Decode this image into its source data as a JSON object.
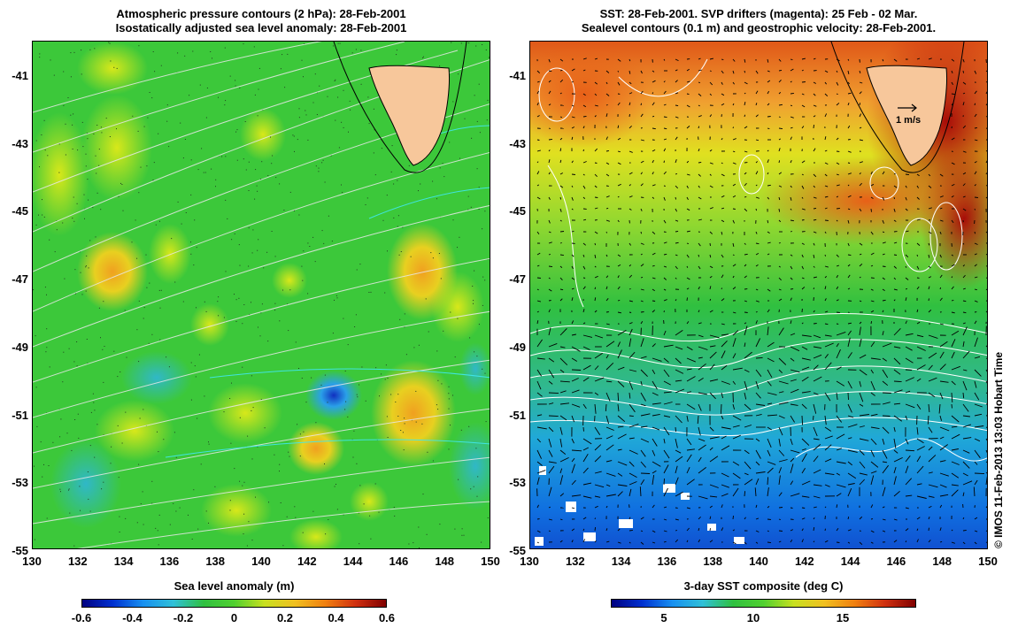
{
  "left": {
    "title_line1": "Atmospheric pressure contours (2 hPa): 28-Feb-2001",
    "title_line2": "Isostatically adjusted sea level anomaly: 28-Feb-2001",
    "colorbar_title": "Sea level anomaly (m)",
    "colorbar_ticks": [
      "-0.6",
      "-0.4",
      "-0.2",
      "0",
      "0.2",
      "0.4",
      "0.6"
    ]
  },
  "right": {
    "title_line1": "SST: 28-Feb-2001. SVP drifters (magenta): 25 Feb - 02 Mar.",
    "title_line2": "Sealevel contours (0.1 m) and geostrophic velocity: 28-Feb-2001.",
    "colorbar_title": "3-day SST composite (deg C)",
    "colorbar_ticks": [
      "5",
      "10",
      "15"
    ],
    "velocity_scale_label": "1 m/s"
  },
  "axes": {
    "lat_labels": [
      "-41",
      "-43",
      "-45",
      "-47",
      "-49",
      "-51",
      "-53",
      "-55"
    ],
    "lon_labels": [
      "130",
      "132",
      "134",
      "136",
      "138",
      "140",
      "142",
      "144",
      "146",
      "148",
      "150"
    ]
  },
  "credit": "© IMOS 11-Feb-2013 13:03 Hobart Time",
  "colors": {
    "land": "#f7c79b",
    "sla_background": "#3cc83a",
    "sst_warm": "#c0180c",
    "sst_cool": "#1e90ff"
  }
}
